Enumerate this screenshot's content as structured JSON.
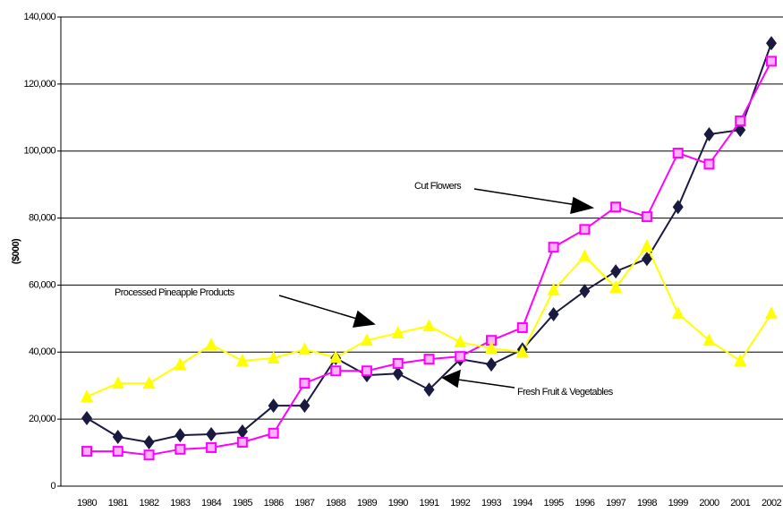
{
  "chart_data": {
    "type": "line",
    "y_label": "($000)",
    "categories": [
      "1980",
      "1981",
      "1982",
      "1983",
      "1984",
      "1985",
      "1986",
      "1987",
      "1988",
      "1989",
      "1990",
      "1991",
      "1992",
      "1993",
      "1994",
      "1995",
      "1996",
      "1997",
      "1998",
      "1999",
      "2000",
      "2001",
      "2002"
    ],
    "series": [
      {
        "name": "Fresh Fruit & Vegetables",
        "color": "#1a1a40",
        "marker": "diamond",
        "values": [
          20300,
          14700,
          13100,
          15200,
          15500,
          16300,
          24000,
          24000,
          38200,
          33100,
          33600,
          28800,
          37900,
          36300,
          40800,
          51300,
          58200,
          64100,
          67800,
          83300,
          105000,
          106300,
          132200
        ]
      },
      {
        "name": "Cut Flowers",
        "color": "#ff00ff",
        "marker": "square",
        "values": [
          10400,
          10400,
          9300,
          11000,
          11500,
          13100,
          15800,
          30700,
          34400,
          34400,
          36600,
          37900,
          38700,
          43500,
          47300,
          71300,
          76600,
          83300,
          80400,
          99400,
          96100,
          109000,
          126800
        ]
      },
      {
        "name": "Processed Pineapple Products",
        "color": "#ffff00",
        "marker": "triangle",
        "values": [
          26700,
          30700,
          30700,
          36300,
          42200,
          37400,
          38200,
          40800,
          38400,
          43500,
          45700,
          47800,
          43000,
          41100,
          40000,
          58500,
          68600,
          59300,
          71600,
          51500,
          43500,
          37400,
          51500
        ]
      }
    ],
    "ylim": [
      0,
      140000
    ],
    "yticks": [
      0,
      {
        "value": 20000,
        "label": "20,000"
      },
      {
        "value": 40000,
        "label": "40,000"
      },
      {
        "value": 60000,
        "label": "60,000"
      },
      {
        "value": 80000,
        "label": "80,000"
      },
      {
        "value": 100000,
        "label": "100,000"
      },
      {
        "value": 120000,
        "label": "120,000"
      },
      {
        "value": 140000,
        "label": "140,000"
      }
    ],
    "grid": true
  }
}
